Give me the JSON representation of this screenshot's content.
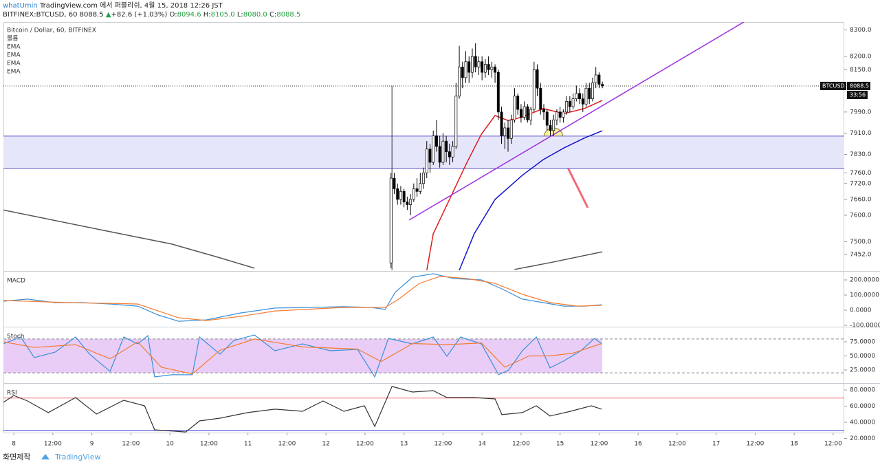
{
  "header": {
    "author": "whatUmin",
    "published": "TradingView.com 에서 퍼블리쉬, 4월 15, 2018 12:26 JST",
    "symbol": "BITFINEX:BTCUSD, 60",
    "price": "8088.5",
    "arrow": "▲",
    "change": "+82.6 (+1.03%)",
    "ohlc": [
      {
        "key": "O:",
        "value": "8094.6"
      },
      {
        "key": "H:",
        "value": "8105.0"
      },
      {
        "key": "L:",
        "value": "8080.0"
      },
      {
        "key": "C:",
        "value": "8088.5"
      }
    ]
  },
  "footer": {
    "credit": "화면제작",
    "brand": "TradingView"
  },
  "chart_data": [
    {
      "type": "candlestick",
      "title": "Bitcoin / Dollar, 60, BITFINEX",
      "legend": [
        "볼륨",
        "EMA",
        "EMA",
        "EMA",
        "EMA"
      ],
      "up_color": "#ffffff",
      "down_color": "#000000",
      "x": [
        116,
        117,
        118,
        119,
        120,
        121,
        122,
        123,
        124,
        125,
        126,
        127,
        128,
        129,
        130,
        131,
        132,
        133,
        134,
        135,
        136,
        137,
        138,
        139,
        140,
        141,
        142,
        143,
        144,
        145,
        146,
        147,
        148,
        149,
        150,
        151,
        152,
        153,
        154,
        155,
        156,
        157,
        158,
        159,
        160,
        161,
        162,
        163,
        164,
        165,
        166,
        167,
        168,
        169,
        170,
        171,
        172,
        173,
        174,
        175,
        176,
        177,
        178,
        179,
        180,
        181
      ],
      "open": [
        7420,
        7740,
        7700,
        7660,
        7690,
        7650,
        7640,
        7660,
        7700,
        7690,
        7720,
        7760,
        7850,
        7800,
        7900,
        7860,
        7800,
        7880,
        7840,
        7820,
        7860,
        8050,
        8160,
        8120,
        8180,
        8140,
        8200,
        8160,
        8180,
        8140,
        8170,
        8150,
        8160,
        8140,
        7990,
        7900,
        7930,
        7890,
        7960,
        8050,
        8000,
        7970,
        8010,
        7960,
        8000,
        8150,
        8080,
        8000,
        7990,
        7940,
        7920,
        7960,
        7990,
        7970,
        7990,
        8030,
        8010,
        8040,
        8060,
        8040,
        8020,
        8080,
        8040,
        8100,
        8130,
        8094.6
      ],
      "high": [
        7760,
        7760,
        7720,
        7710,
        7700,
        7670,
        7680,
        7720,
        7740,
        7760,
        7780,
        7880,
        7870,
        7920,
        7960,
        7900,
        7910,
        7900,
        7870,
        7880,
        8100,
        8240,
        8180,
        8220,
        8200,
        8230,
        8250,
        8200,
        8200,
        8190,
        8200,
        8180,
        8170,
        8150,
        8010,
        7950,
        7960,
        7980,
        8080,
        8060,
        8020,
        8030,
        8020,
        8010,
        8180,
        8170,
        8100,
        8020,
        8000,
        7960,
        7980,
        8000,
        8010,
        8000,
        8050,
        8050,
        8060,
        8090,
        8080,
        8060,
        8100,
        8100,
        8120,
        8160,
        8140,
        8105
      ],
      "low": [
        7400,
        7680,
        7640,
        7640,
        7630,
        7620,
        7600,
        7650,
        7670,
        7680,
        7700,
        7740,
        7760,
        7790,
        7840,
        7780,
        7790,
        7800,
        7790,
        7800,
        7850,
        8040,
        8080,
        8100,
        8100,
        8120,
        8140,
        8130,
        8110,
        8120,
        8130,
        8120,
        8100,
        7960,
        7870,
        7850,
        7840,
        7870,
        7950,
        7980,
        7950,
        7960,
        7950,
        7940,
        7990,
        8050,
        7980,
        7960,
        7920,
        7900,
        7900,
        7940,
        7950,
        7950,
        7980,
        7990,
        8000,
        8030,
        8020,
        7990,
        8010,
        8020,
        8030,
        8080,
        8080,
        8080
      ],
      "close": [
        7740,
        7700,
        7660,
        7690,
        7650,
        7640,
        7660,
        7700,
        7690,
        7720,
        7760,
        7850,
        7800,
        7900,
        7860,
        7800,
        7880,
        7840,
        7820,
        7860,
        8050,
        8160,
        8120,
        8180,
        8140,
        8200,
        8160,
        8180,
        8140,
        8170,
        8150,
        8160,
        8140,
        7990,
        7900,
        7930,
        7890,
        7960,
        8050,
        8000,
        7970,
        8010,
        7960,
        8000,
        8150,
        8080,
        8000,
        7990,
        7940,
        7920,
        7960,
        7990,
        7970,
        7990,
        8030,
        8010,
        8040,
        8060,
        8040,
        8020,
        8080,
        8040,
        8100,
        8130,
        8094.6,
        8088.5
      ],
      "lines": [
        {
          "color": "#555555",
          "x": [
            -3.2,
            27.5,
            48.6,
            63.4,
            74,
            110,
            154,
            165,
            181
          ],
          "values": [
            7620,
            7543,
            7491,
            7439,
            7400,
            null,
            7395,
            7421,
            7462
          ]
        },
        {
          "color": "#e0191b",
          "x": [
            127,
            129,
            133,
            139.5,
            143.8,
            148,
            152,
            156.4,
            162.8,
            169.1,
            175.5,
            181
          ],
          "values": [
            7392,
            7530,
            7634,
            7803,
            7906,
            7977,
            7958,
            7971,
            8003,
            7984,
            8003,
            8034
          ]
        },
        {
          "color": "#1414c8",
          "x": [
            137,
            141.6,
            148,
            156.4,
            162.8,
            169.3,
            175.7,
            181
          ],
          "values": [
            7392,
            7530,
            7660,
            7751,
            7810,
            7855,
            7893,
            7919
          ]
        }
      ],
      "trendline": {
        "color": "#9b2fe0",
        "x": [
          121.6,
          224.5
        ],
        "values": [
          7582,
          8330
        ]
      },
      "band": [
        7777,
        7899
      ],
      "vline_x": 116.3,
      "last_price": {
        "label": "BTCUSD",
        "value": 8088.5,
        "countdown": "33:56"
      },
      "xlim": [
        -3.2,
        255.4
      ],
      "ylim": [
        7392,
        8330
      ],
      "yticks": [
        {
          "value": 8300,
          "label": "8300.0"
        },
        {
          "value": 8200,
          "label": "8200.0"
        },
        {
          "value": 8150,
          "label": "8150.0"
        },
        {
          "value": 7990,
          "label": "7990.0"
        },
        {
          "value": 7910,
          "label": "7910.0"
        },
        {
          "value": 7830,
          "label": "7830.0"
        },
        {
          "value": 7760,
          "label": "7760.0"
        },
        {
          "value": 7720,
          "label": "7720.0"
        },
        {
          "value": 7660,
          "label": "7660.0"
        },
        {
          "value": 7600,
          "label": "7600.0"
        },
        {
          "value": 7500,
          "label": "7500.0"
        },
        {
          "value": 7452,
          "label": "7452.0"
        }
      ]
    },
    {
      "type": "line",
      "title": "MACD",
      "xlim": [
        -3.2,
        255.4
      ],
      "ylim": [
        -104.5,
        250
      ],
      "yticks": [
        {
          "value": 200,
          "label": "200.0000"
        },
        {
          "value": 100,
          "label": "100.0000"
        },
        {
          "value": 0,
          "label": "0.0000"
        },
        {
          "value": -100,
          "label": "-100.0000"
        }
      ],
      "lines": [
        {
          "color": "#3a8fd8",
          "x": [
            -3.2,
            4.2,
            12.7,
            21.1,
            29.6,
            38.1,
            44.4,
            50.7,
            59.2,
            69.8,
            80.3,
            90.9,
            101.5,
            109.9,
            114.2,
            117.3,
            122.6,
            129,
            135.3,
            143.8,
            150.1,
            156.4,
            162.8,
            169.1,
            175.5,
            180.8
          ],
          "values": [
            59,
            73,
            50,
            50,
            41,
            27,
            -32,
            -73,
            -64,
            -18,
            14,
            18,
            23,
            18,
            5,
            118,
            218,
            241,
            209,
            200,
            141,
            73,
            50,
            27,
            27,
            36
          ]
        },
        {
          "color": "#f57c30",
          "x": [
            -3.2,
            16.9,
            38.1,
            44.4,
            50.7,
            59.2,
            69.8,
            80.3,
            101.5,
            114.2,
            118.4,
            124.7,
            131.1,
            139.5,
            148,
            156.4,
            164.9,
            173.4,
            180.8
          ],
          "values": [
            64,
            50,
            41,
            -5,
            -50,
            -68,
            -41,
            -5,
            18,
            18,
            73,
            177,
            223,
            209,
            177,
            105,
            50,
            27,
            32
          ]
        }
      ]
    },
    {
      "type": "line",
      "title": "Stoch",
      "xlim": [
        -3.2,
        255.4
      ],
      "ylim": [
        3,
        99.4
      ],
      "band": [
        20,
        80
      ],
      "band_color": "#e9cdf7",
      "yticks": [
        {
          "value": 75,
          "label": "75.0000"
        },
        {
          "value": 50,
          "label": "50.0000"
        },
        {
          "value": 25,
          "label": "25.0000"
        }
      ],
      "lines": [
        {
          "color": "#3a8fd8",
          "x": [
            -3.2,
            2.1,
            6.3,
            12.7,
            19,
            23.3,
            29.6,
            33.8,
            38.1,
            41.2,
            43.3,
            48.6,
            54.9,
            57.1,
            63.4,
            67.7,
            74,
            80.3,
            88.8,
            97.3,
            105.7,
            111,
            115.2,
            122.6,
            129,
            133.2,
            137.4,
            143.8,
            149.1,
            152.2,
            156.4,
            160.7,
            164.9,
            169.1,
            174.4,
            178.6,
            180.8
          ],
          "values": [
            71.3,
            83.5,
            47,
            56.7,
            83.5,
            53,
            22.6,
            83.5,
            71.3,
            86,
            12.8,
            16.5,
            16.5,
            83.5,
            53,
            77.4,
            87.2,
            59.1,
            71.3,
            59.1,
            61.6,
            12.8,
            81.1,
            71.3,
            83.5,
            49.4,
            83.5,
            71.3,
            16.5,
            25,
            59.1,
            83.5,
            28.7,
            40.9,
            59.1,
            81.1,
            71.3
          ]
        },
        {
          "color": "#f57c30",
          "x": [
            -3.2,
            6.3,
            19,
            29.6,
            38.1,
            45.4,
            54.9,
            63.4,
            74,
            88.8,
            105.7,
            113,
            122.6,
            133.2,
            143.8,
            151,
            158.5,
            164.9,
            172,
            180.8
          ],
          "values": [
            75,
            65,
            70,
            45,
            75,
            30,
            18,
            60,
            80,
            66,
            62,
            40,
            72,
            70,
            73,
            30,
            50,
            50,
            55,
            72
          ]
        }
      ]
    },
    {
      "type": "line",
      "title": "RSI",
      "xlim": [
        -3.2,
        255.4
      ],
      "ylim": [
        27.2,
        86.8
      ],
      "line_color": "#333333",
      "levels": [
        {
          "value": 70,
          "color": "#f26d6d"
        },
        {
          "value": 30,
          "color": "#4040d8"
        }
      ],
      "yticks": [
        {
          "value": 80,
          "label": "80.0000"
        },
        {
          "value": 60,
          "label": "60.0000"
        },
        {
          "value": 40,
          "label": "40.0000"
        },
        {
          "value": 20,
          "label": "20.0000"
        }
      ],
      "x": [
        -3.2,
        0,
        4.2,
        10.6,
        19,
        25.4,
        33.8,
        40.2,
        43.3,
        52.9,
        57.1,
        63.4,
        71.9,
        80.3,
        88.8,
        95.1,
        101.5,
        107.8,
        111,
        116.3,
        122.6,
        129,
        133.2,
        141.6,
        148,
        150.1,
        156.4,
        160.7,
        164.9,
        171.2,
        177.6,
        180.8
      ],
      "values": [
        64.7,
        73.2,
        66.4,
        52,
        70.6,
        50.2,
        67.2,
        60.4,
        30.6,
        28,
        41.7,
        45.1,
        52,
        56.2,
        53.6,
        66.4,
        53.6,
        60.4,
        34.9,
        84.3,
        77.4,
        79.1,
        70.6,
        70.6,
        68.9,
        49.4,
        52,
        60.4,
        47.7,
        53.6,
        60.4,
        56.2
      ],
      "xticks": [
        {
          "value": 0,
          "label": "8"
        },
        {
          "value": 12,
          "label": "12:00"
        },
        {
          "value": 24,
          "label": "9"
        },
        {
          "value": 36,
          "label": "12:00"
        },
        {
          "value": 48,
          "label": "10"
        },
        {
          "value": 60,
          "label": "12:00"
        },
        {
          "value": 72,
          "label": "11"
        },
        {
          "value": 84,
          "label": "12:00"
        },
        {
          "value": 96,
          "label": "12"
        },
        {
          "value": 108,
          "label": "12:00"
        },
        {
          "value": 120,
          "label": "13"
        },
        {
          "value": 132,
          "label": "12:00"
        },
        {
          "value": 144,
          "label": "14"
        },
        {
          "value": 156,
          "label": "12:00"
        },
        {
          "value": 168,
          "label": "15"
        },
        {
          "value": 180,
          "label": "12:00"
        },
        {
          "value": 192,
          "label": "16"
        },
        {
          "value": 204,
          "label": "12:00"
        },
        {
          "value": 216,
          "label": "17"
        },
        {
          "value": 228,
          "label": "12:00"
        },
        {
          "value": 240,
          "label": "18"
        },
        {
          "value": 252,
          "label": "12:00"
        }
      ]
    }
  ]
}
